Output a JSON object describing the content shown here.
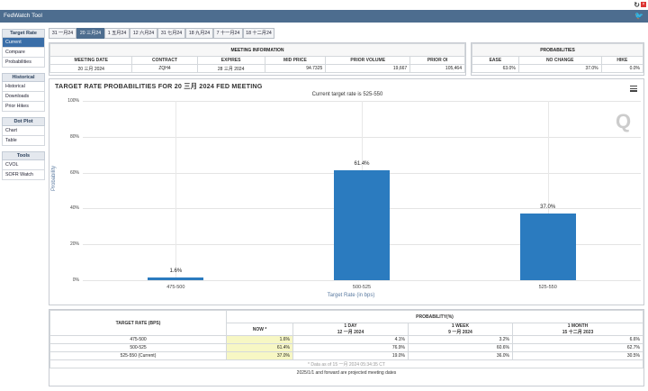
{
  "window": {
    "title": "FedWatch Tool"
  },
  "sidebar": {
    "groups": [
      {
        "header": "Target Rate",
        "items": [
          "Current",
          "Compare",
          "Probabilities"
        ]
      },
      {
        "header": "Historical",
        "items": [
          "Historical",
          "Downloads",
          "Prior Hikes"
        ]
      },
      {
        "header": "Dot Plot",
        "items": [
          "Chart",
          "Table"
        ]
      },
      {
        "header": "Tools",
        "items": [
          "CVOL",
          "SOFR Watch"
        ]
      }
    ]
  },
  "tabs": [
    "31 一月24",
    "20 三月24",
    "1 五月24",
    "12 六月24",
    "31 七月24",
    "18 九月24",
    "7 十一月24",
    "18 十二月24"
  ],
  "meeting_info": {
    "header": "MEETING INFORMATION",
    "columns": [
      "MEETING DATE",
      "CONTRACT",
      "EXPIRES",
      "MID PRICE",
      "PRIOR VOLUME",
      "PRIOR OI"
    ],
    "values": [
      "20 三月 2024",
      "ZQH4",
      "28 三月 2024",
      "94.7325",
      "19,667",
      "105,464"
    ]
  },
  "probabilities": {
    "header": "PROBABILITIES",
    "columns": [
      "EASE",
      "NO CHANGE",
      "HIKE"
    ],
    "values": [
      "63.0%",
      "37.0%",
      "0.0%"
    ]
  },
  "chart_data": {
    "type": "bar",
    "title": "TARGET RATE PROBABILITIES FOR 20 三月 2024 FED MEETING",
    "subtitle": "Current target rate is 525-550",
    "xlabel": "Target Rate (in bps)",
    "ylabel": "Probability",
    "categories": [
      "475-500",
      "500-525",
      "525-550"
    ],
    "values": [
      1.6,
      61.4,
      37.0
    ],
    "value_labels": [
      "1.6%",
      "61.4%",
      "37.0%"
    ],
    "ylim": [
      0,
      100
    ],
    "yticks": [
      "0%",
      "20%",
      "40%",
      "60%",
      "80%",
      "100%"
    ],
    "color": "#2b7bbf",
    "grid": true
  },
  "prob_table": {
    "col_target": "TARGET RATE (BPS)",
    "col_group": "PROBABILITY(%)",
    "col_now": "NOW *",
    "col_1day": [
      "1 DAY",
      "12 一月 2024"
    ],
    "col_1week": [
      "1 WEEK",
      "9 一月 2024"
    ],
    "col_1month": [
      "1 MONTH",
      "15 十二月 2023"
    ],
    "rows": [
      {
        "rate": "475-500",
        "now": "1.6%",
        "day": "4.1%",
        "week": "3.2%",
        "month": "6.6%"
      },
      {
        "rate": "500-525",
        "now": "61.4%",
        "day": "76.9%",
        "week": "60.6%",
        "month": "62.7%"
      },
      {
        "rate": "525-550 (Current)",
        "now": "37.0%",
        "day": "19.0%",
        "week": "36.0%",
        "month": "30.5%"
      }
    ],
    "footnote": "* Data as of 15 一月 2024 05:34:35 CT",
    "projected_note": "2025/1/1 and forward are projected meeting dates"
  }
}
